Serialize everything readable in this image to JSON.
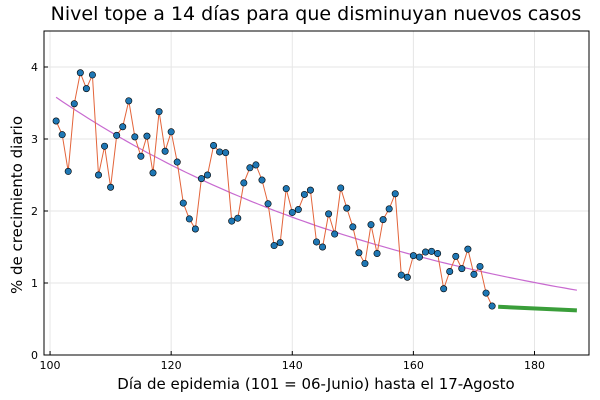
{
  "chart_data": {
    "type": "scatter",
    "title": "Nivel tope a 14 días para que disminuyan nuevos casos",
    "xlabel": "Día de epidemia (101 = 06-Junio) hasta el 17-Agosto",
    "ylabel": "% de crecimiento diario",
    "xlim": [
      99,
      189
    ],
    "ylim": [
      0,
      4.5
    ],
    "xticks": [
      100,
      120,
      140,
      160,
      180
    ],
    "yticks": [
      0,
      1,
      2,
      3,
      4
    ],
    "grid": true,
    "legend": "none",
    "series": [
      {
        "kind": "observed",
        "color_points": "#1f77b4",
        "color_line": "#e3643a",
        "x": [
          101,
          102,
          103,
          104,
          105,
          106,
          107,
          108,
          109,
          110,
          111,
          112,
          113,
          114,
          115,
          116,
          117,
          118,
          119,
          120,
          121,
          122,
          123,
          124,
          125,
          126,
          127,
          128,
          129,
          130,
          131,
          132,
          133,
          134,
          135,
          136,
          137,
          138,
          139,
          140,
          141,
          142,
          143,
          144,
          145,
          146,
          147,
          148,
          149,
          150,
          151,
          152,
          153,
          154,
          155,
          156,
          157,
          158,
          159,
          160,
          161,
          162,
          163,
          164,
          165,
          166,
          167,
          168,
          169,
          170,
          171,
          172,
          173
        ],
        "y": [
          3.25,
          3.06,
          2.55,
          3.49,
          3.92,
          3.7,
          3.89,
          2.5,
          2.9,
          2.33,
          3.05,
          3.17,
          3.53,
          3.03,
          2.76,
          3.04,
          2.53,
          3.38,
          2.83,
          3.1,
          2.68,
          2.11,
          1.89,
          1.75,
          2.45,
          2.5,
          2.91,
          2.82,
          2.81,
          1.86,
          1.9,
          2.39,
          2.6,
          2.64,
          2.43,
          2.1,
          1.52,
          1.56,
          2.31,
          1.98,
          2.02,
          2.23,
          2.29,
          1.57,
          1.5,
          1.96,
          1.68,
          2.32,
          2.04,
          1.78,
          1.42,
          1.27,
          1.81,
          1.41,
          1.88,
          2.03,
          2.24,
          1.11,
          1.08,
          1.38,
          1.36,
          1.43,
          1.44,
          1.41,
          0.92,
          1.16,
          1.37,
          1.2,
          1.47,
          1.12,
          1.23,
          0.86,
          0.68
        ]
      },
      {
        "kind": "trend",
        "color": "#c86ad0",
        "x": [
          101,
          187
        ],
        "y": [
          3.58,
          0.9
        ]
      },
      {
        "kind": "target",
        "color": "#3a9e3a",
        "x": [
          174,
          187
        ],
        "y": [
          0.67,
          0.62
        ]
      }
    ]
  }
}
